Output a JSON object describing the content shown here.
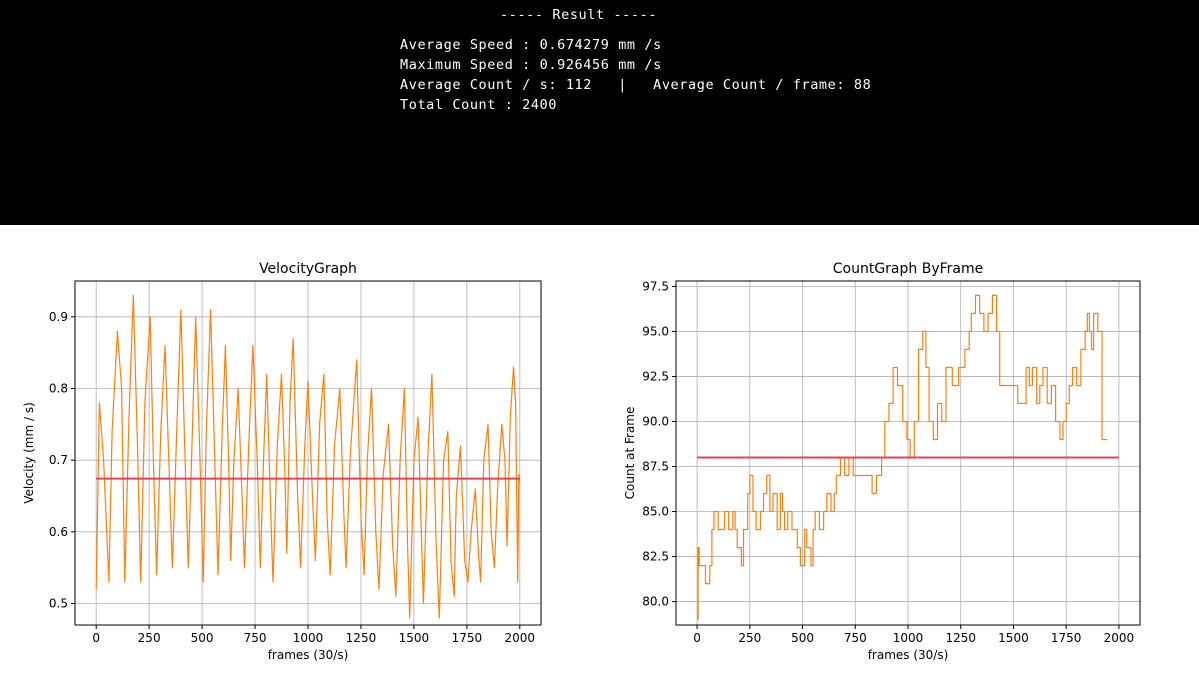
{
  "result": {
    "header": "----- Result -----",
    "lines": [
      "Average Speed : 0.674279 mm /s",
      "Maximum Speed : 0.926456 mm /s",
      "Average Count / s: 112   |   Average Count / frame: 88",
      "Total Count : 2400"
    ]
  },
  "chart_data": [
    {
      "type": "line",
      "title": "VelocityGraph",
      "xlabel": "frames (30/s)",
      "ylabel": "Velocity (mm / s)",
      "xlim": [
        -100,
        2100
      ],
      "ylim": [
        0.47,
        0.95
      ],
      "xticks": [
        0,
        250,
        500,
        750,
        1000,
        1250,
        1500,
        1750,
        2000
      ],
      "xtick_labels": [
        "0",
        "250",
        "500",
        "750",
        "1000",
        "1250",
        "1500",
        "1750",
        "2000"
      ],
      "yticks": [
        0.5,
        0.6,
        0.7,
        0.8,
        0.9
      ],
      "ytick_labels": [
        "0.5",
        "0.6",
        "0.7",
        "0.8",
        "0.9"
      ],
      "grid": true,
      "series": [
        {
          "color": "#ff7f0e",
          "points": [
            [
              0,
              0.52
            ],
            [
              15,
              0.78
            ],
            [
              25,
              0.74
            ],
            [
              35,
              0.7
            ],
            [
              60,
              0.53
            ],
            [
              75,
              0.74
            ],
            [
              100,
              0.88
            ],
            [
              120,
              0.8
            ],
            [
              135,
              0.53
            ],
            [
              155,
              0.76
            ],
            [
              175,
              0.93
            ],
            [
              195,
              0.72
            ],
            [
              210,
              0.53
            ],
            [
              230,
              0.78
            ],
            [
              255,
              0.9
            ],
            [
              270,
              0.7
            ],
            [
              285,
              0.54
            ],
            [
              305,
              0.74
            ],
            [
              325,
              0.86
            ],
            [
              345,
              0.68
            ],
            [
              360,
              0.55
            ],
            [
              380,
              0.74
            ],
            [
              400,
              0.91
            ],
            [
              420,
              0.7
            ],
            [
              435,
              0.55
            ],
            [
              455,
              0.75
            ],
            [
              470,
              0.9
            ],
            [
              490,
              0.7
            ],
            [
              505,
              0.53
            ],
            [
              520,
              0.74
            ],
            [
              540,
              0.91
            ],
            [
              560,
              0.7
            ],
            [
              575,
              0.54
            ],
            [
              595,
              0.74
            ],
            [
              610,
              0.86
            ],
            [
              625,
              0.7
            ],
            [
              635,
              0.56
            ],
            [
              650,
              0.7
            ],
            [
              670,
              0.8
            ],
            [
              690,
              0.64
            ],
            [
              700,
              0.55
            ],
            [
              720,
              0.72
            ],
            [
              740,
              0.86
            ],
            [
              760,
              0.7
            ],
            [
              775,
              0.55
            ],
            [
              790,
              0.7
            ],
            [
              805,
              0.82
            ],
            [
              825,
              0.62
            ],
            [
              835,
              0.53
            ],
            [
              855,
              0.72
            ],
            [
              875,
              0.82
            ],
            [
              890,
              0.69
            ],
            [
              900,
              0.57
            ],
            [
              915,
              0.78
            ],
            [
              930,
              0.87
            ],
            [
              950,
              0.66
            ],
            [
              965,
              0.55
            ],
            [
              985,
              0.72
            ],
            [
              1000,
              0.81
            ],
            [
              1020,
              0.66
            ],
            [
              1035,
              0.56
            ],
            [
              1055,
              0.75
            ],
            [
              1075,
              0.82
            ],
            [
              1090,
              0.62
            ],
            [
              1105,
              0.54
            ],
            [
              1125,
              0.72
            ],
            [
              1150,
              0.8
            ],
            [
              1170,
              0.62
            ],
            [
              1180,
              0.55
            ],
            [
              1200,
              0.71
            ],
            [
              1230,
              0.84
            ],
            [
              1250,
              0.62
            ],
            [
              1265,
              0.54
            ],
            [
              1280,
              0.7
            ],
            [
              1300,
              0.8
            ],
            [
              1320,
              0.6
            ],
            [
              1335,
              0.52
            ],
            [
              1355,
              0.68
            ],
            [
              1380,
              0.75
            ],
            [
              1400,
              0.58
            ],
            [
              1415,
              0.51
            ],
            [
              1435,
              0.7
            ],
            [
              1455,
              0.8
            ],
            [
              1470,
              0.58
            ],
            [
              1480,
              0.48
            ],
            [
              1500,
              0.7
            ],
            [
              1520,
              0.76
            ],
            [
              1535,
              0.6
            ],
            [
              1545,
              0.5
            ],
            [
              1565,
              0.7
            ],
            [
              1585,
              0.82
            ],
            [
              1605,
              0.58
            ],
            [
              1620,
              0.48
            ],
            [
              1640,
              0.7
            ],
            [
              1660,
              0.74
            ],
            [
              1675,
              0.56
            ],
            [
              1690,
              0.51
            ],
            [
              1700,
              0.65
            ],
            [
              1720,
              0.72
            ],
            [
              1740,
              0.56
            ],
            [
              1755,
              0.53
            ],
            [
              1770,
              0.6
            ],
            [
              1790,
              0.66
            ],
            [
              1805,
              0.57
            ],
            [
              1815,
              0.53
            ],
            [
              1830,
              0.7
            ],
            [
              1850,
              0.75
            ],
            [
              1865,
              0.6
            ],
            [
              1880,
              0.55
            ],
            [
              1895,
              0.66
            ],
            [
              1915,
              0.75
            ],
            [
              1930,
              0.7
            ],
            [
              1940,
              0.58
            ],
            [
              1955,
              0.76
            ],
            [
              1970,
              0.83
            ],
            [
              1980,
              0.78
            ],
            [
              1990,
              0.53
            ],
            [
              1995,
              0.68
            ],
            [
              2000,
              0.67
            ]
          ]
        },
        {
          "color": "#e8405a",
          "points": [
            [
              0,
              0.674279
            ],
            [
              2000,
              0.674279
            ]
          ]
        }
      ]
    },
    {
      "type": "line",
      "title": "CountGraph ByFrame",
      "xlabel": "frames (30/s)",
      "ylabel": "Count at Frame",
      "xlim": [
        -100,
        2100
      ],
      "ylim": [
        78.7,
        97.8
      ],
      "xticks": [
        0,
        250,
        500,
        750,
        1000,
        1250,
        1500,
        1750,
        2000
      ],
      "xtick_labels": [
        "0",
        "250",
        "500",
        "750",
        "1000",
        "1250",
        "1500",
        "1750",
        "2000"
      ],
      "yticks": [
        80.0,
        82.5,
        85.0,
        87.5,
        90.0,
        92.5,
        95.0,
        97.5
      ],
      "ytick_labels": [
        "80.0",
        "82.5",
        "85.0",
        "87.5",
        "90.0",
        "92.5",
        "95.0",
        "97.5"
      ],
      "grid": true,
      "series": [
        {
          "color": "#ff7f0e",
          "step": true,
          "points": [
            [
              0,
              79
            ],
            [
              5,
              83
            ],
            [
              10,
              82
            ],
            [
              40,
              81
            ],
            [
              60,
              82
            ],
            [
              70,
              84
            ],
            [
              80,
              85
            ],
            [
              100,
              84
            ],
            [
              130,
              85
            ],
            [
              150,
              84
            ],
            [
              170,
              85
            ],
            [
              180,
              84
            ],
            [
              190,
              83
            ],
            [
              210,
              82
            ],
            [
              220,
              84
            ],
            [
              240,
              86
            ],
            [
              250,
              87
            ],
            [
              265,
              85
            ],
            [
              280,
              84
            ],
            [
              300,
              85
            ],
            [
              315,
              86
            ],
            [
              330,
              87
            ],
            [
              345,
              85
            ],
            [
              360,
              86
            ],
            [
              380,
              84
            ],
            [
              395,
              86
            ],
            [
              405,
              85
            ],
            [
              415,
              84
            ],
            [
              430,
              85
            ],
            [
              450,
              84
            ],
            [
              475,
              83
            ],
            [
              490,
              82
            ],
            [
              510,
              84
            ],
            [
              520,
              83
            ],
            [
              540,
              82
            ],
            [
              550,
              84
            ],
            [
              560,
              85
            ],
            [
              580,
              84
            ],
            [
              600,
              85
            ],
            [
              615,
              86
            ],
            [
              635,
              85
            ],
            [
              650,
              86
            ],
            [
              660,
              87
            ],
            [
              680,
              88
            ],
            [
              700,
              87
            ],
            [
              720,
              88
            ],
            [
              740,
              87
            ],
            [
              780,
              87
            ],
            [
              830,
              86
            ],
            [
              850,
              87
            ],
            [
              875,
              88
            ],
            [
              890,
              90
            ],
            [
              910,
              91
            ],
            [
              930,
              93
            ],
            [
              950,
              92
            ],
            [
              975,
              90
            ],
            [
              995,
              89
            ],
            [
              1010,
              88
            ],
            [
              1030,
              90
            ],
            [
              1050,
              94
            ],
            [
              1070,
              95
            ],
            [
              1085,
              93
            ],
            [
              1100,
              90
            ],
            [
              1120,
              89
            ],
            [
              1140,
              91
            ],
            [
              1160,
              90
            ],
            [
              1180,
              93
            ],
            [
              1210,
              92
            ],
            [
              1240,
              93
            ],
            [
              1270,
              94
            ],
            [
              1290,
              95
            ],
            [
              1300,
              96
            ],
            [
              1320,
              97
            ],
            [
              1340,
              96
            ],
            [
              1360,
              95
            ],
            [
              1380,
              96
            ],
            [
              1400,
              97
            ],
            [
              1420,
              95
            ],
            [
              1435,
              92
            ],
            [
              1500,
              92
            ],
            [
              1520,
              91
            ],
            [
              1540,
              91
            ],
            [
              1560,
              93
            ],
            [
              1575,
              92
            ],
            [
              1590,
              93
            ],
            [
              1610,
              91
            ],
            [
              1625,
              92
            ],
            [
              1640,
              93
            ],
            [
              1660,
              91
            ],
            [
              1680,
              92
            ],
            [
              1700,
              90
            ],
            [
              1720,
              89
            ],
            [
              1735,
              90
            ],
            [
              1750,
              91
            ],
            [
              1765,
              92
            ],
            [
              1780,
              93
            ],
            [
              1800,
              92
            ],
            [
              1820,
              94
            ],
            [
              1840,
              95
            ],
            [
              1850,
              96
            ],
            [
              1860,
              95
            ],
            [
              1870,
              94
            ],
            [
              1880,
              96
            ],
            [
              1900,
              95
            ],
            [
              1920,
              89
            ],
            [
              1930,
              89
            ],
            [
              1945,
              89
            ]
          ]
        },
        {
          "color": "#e8405a",
          "points": [
            [
              0,
              88
            ],
            [
              2000,
              88
            ]
          ]
        }
      ]
    }
  ]
}
